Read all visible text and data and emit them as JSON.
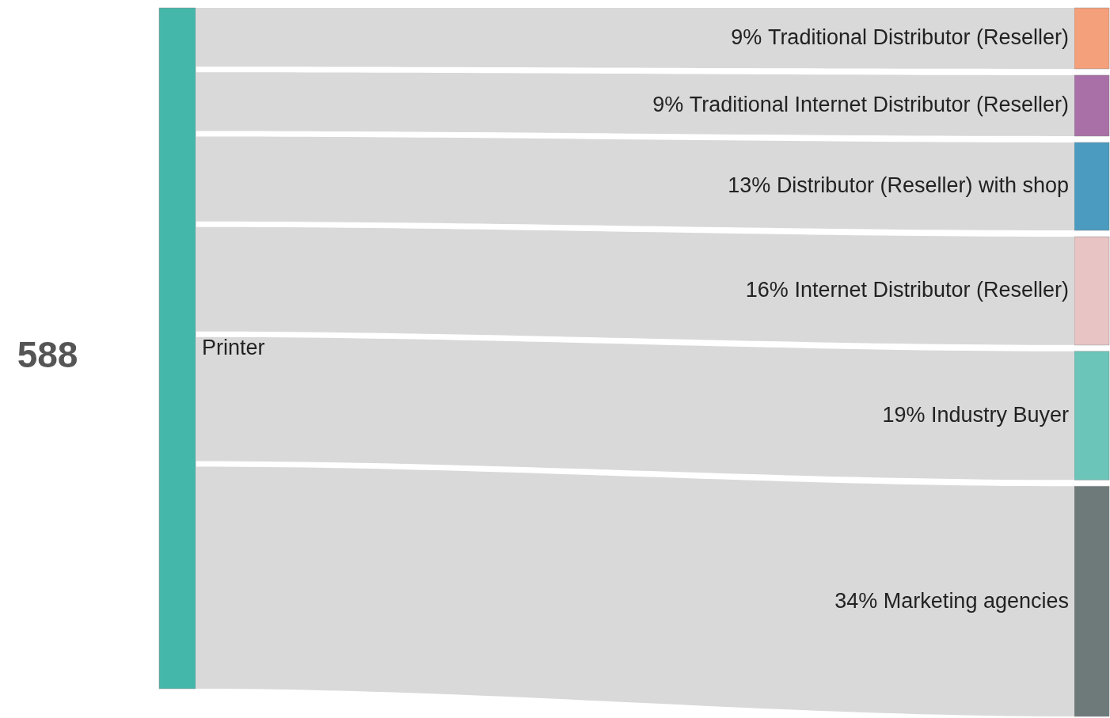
{
  "chart_data": {
    "type": "other",
    "title": "588",
    "annotations": [
      "Printer"
    ],
    "categories": [
      "Traditional Distributor (Reseller)",
      "Traditional Internet Distributor (Reseller)",
      "Distributor (Reseller) with shop",
      "Internet Distributor (Reseller)",
      "Industry Buyer",
      "Marketing agencies"
    ],
    "values": [
      9,
      9,
      13,
      16,
      19,
      34
    ],
    "value_labels": [
      "9%",
      "9%",
      "13%",
      "16%",
      "19%",
      "34%"
    ],
    "colors": [
      "#d9d9d9",
      "#d9d9d9",
      "#d9d9d9",
      "#d9d9d9",
      "#d9d9d9",
      "#d9d9d9"
    ]
  }
}
